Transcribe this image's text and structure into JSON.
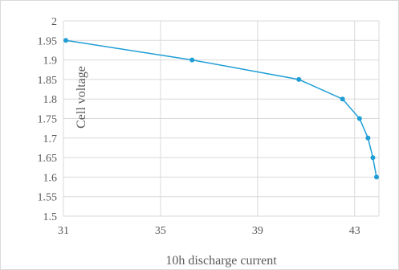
{
  "chart_data": {
    "type": "line",
    "title": "",
    "xlabel": "10h discharge current",
    "ylabel": "Cell voltage",
    "xlim": [
      31,
      44
    ],
    "ylim": [
      1.5,
      2.0
    ],
    "x_ticks": [
      "31",
      "35",
      "39",
      "43"
    ],
    "y_ticks": [
      "1.5",
      "1.55",
      "1.6",
      "1.65",
      "1.7",
      "1.75",
      "1.8",
      "1.85",
      "1.9",
      "1.95",
      "2"
    ],
    "grid": true,
    "legend": "none",
    "series": [
      {
        "color": "#1f9ed6",
        "points": [
          {
            "x": 31.1,
            "y": 1.95
          },
          {
            "x": 36.3,
            "y": 1.9
          },
          {
            "x": 40.7,
            "y": 1.85
          },
          {
            "x": 42.5,
            "y": 1.8
          },
          {
            "x": 43.2,
            "y": 1.75
          },
          {
            "x": 43.55,
            "y": 1.7
          },
          {
            "x": 43.75,
            "y": 1.65
          },
          {
            "x": 43.9,
            "y": 1.6
          }
        ]
      }
    ]
  }
}
